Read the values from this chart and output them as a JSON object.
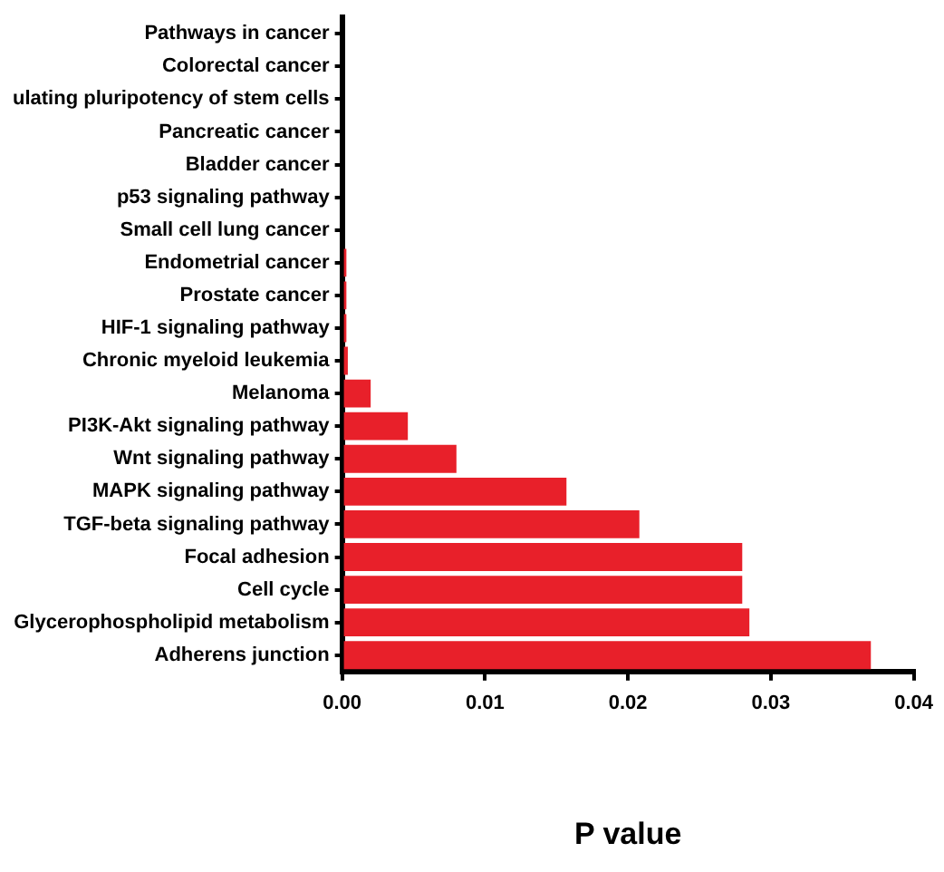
{
  "chart_data": {
    "type": "bar",
    "orientation": "horizontal",
    "xlabel": "P value",
    "categories": [
      "Pathways in cancer",
      "Colorectal cancer",
      "ulating pluripotency of stem cells",
      "Pancreatic cancer",
      "Bladder cancer",
      "p53 signaling pathway",
      "Small cell lung cancer",
      "Endometrial cancer",
      "Prostate cancer",
      "HIF-1 signaling pathway",
      "Chronic myeloid leukemia",
      "Melanoma",
      "PI3K-Akt signaling pathway",
      "Wnt signaling pathway",
      "MAPK signaling pathway",
      "TGF-beta signaling pathway",
      "Focal adhesion",
      "Cell cycle",
      "Glycerophospholipid metabolism",
      "Adherens junction"
    ],
    "values": [
      null,
      null,
      null,
      null,
      null,
      null,
      null,
      0.0003,
      0.0003,
      0.0003,
      0.0004,
      0.002,
      0.0046,
      0.008,
      0.0157,
      0.0208,
      0.028,
      0.028,
      0.0285,
      0.037
    ],
    "color": "#e8202a",
    "xlim": [
      0,
      0.04
    ],
    "xticks": [
      {
        "value": 0,
        "label": "0.00"
      },
      {
        "value": 0.01,
        "label": "0.01"
      },
      {
        "value": 0.02,
        "label": "0.02"
      },
      {
        "value": 0.03,
        "label": "0.03"
      },
      {
        "value": 0.04,
        "label": "0.04"
      }
    ],
    "grid": false,
    "legend": false
  }
}
